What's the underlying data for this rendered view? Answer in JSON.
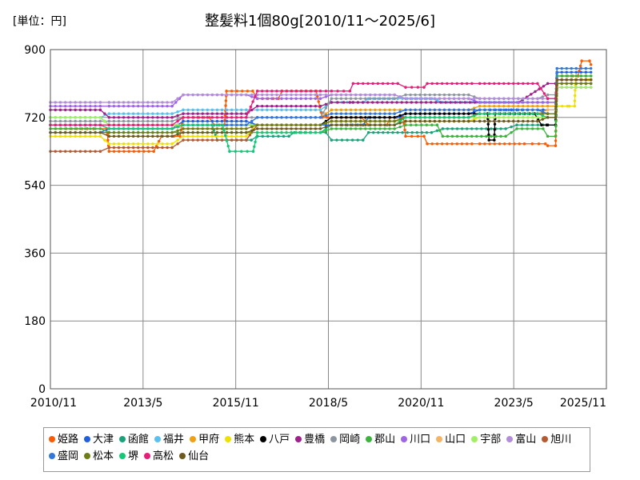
{
  "chart_data": {
    "type": "line",
    "unit_label": "[単位：円]",
    "title": "整髪料1個80g[2010/11～2025/6]",
    "xlabel": "",
    "ylabel": "",
    "ylim": [
      0,
      900
    ],
    "yticks": [
      0,
      180,
      360,
      540,
      720,
      900
    ],
    "xlim": [
      "2010/11",
      "2025/11"
    ],
    "xticks": [
      "2010/11",
      "2013/5",
      "2015/11",
      "2018/5",
      "2020/11",
      "2023/5",
      "2025/11"
    ],
    "grid": true,
    "legend_position": "bottom",
    "series": [
      {
        "name": "姫路",
        "color": "#ff5a00",
        "points": [
          [
            "2010/11",
            690
          ],
          [
            "2012/1",
            690
          ],
          [
            "2012/6",
            630
          ],
          [
            "2013/11",
            670
          ],
          [
            "2014/6",
            720
          ],
          [
            "2015/4",
            700
          ],
          [
            "2015/8",
            790
          ],
          [
            "2016/6",
            770
          ],
          [
            "2017/2",
            790
          ],
          [
            "2018/3",
            720
          ],
          [
            "2019/6",
            700
          ],
          [
            "2020/1",
            720
          ],
          [
            "2020/6",
            670
          ],
          [
            "2021/1",
            650
          ],
          [
            "2022/6",
            650
          ],
          [
            "2023/11",
            650
          ],
          [
            "2024/4",
            645
          ],
          [
            "2024/7",
            830
          ],
          [
            "2025/3",
            870
          ],
          [
            "2025/6",
            860
          ]
        ]
      },
      {
        "name": "大津",
        "color": "#1f5fe0",
        "points": [
          [
            "2010/11",
            680
          ],
          [
            "2012/6",
            690
          ],
          [
            "2014/6",
            710
          ],
          [
            "2016/6",
            700
          ],
          [
            "2018/6",
            700
          ],
          [
            "2019/6",
            720
          ],
          [
            "2020/6",
            730
          ],
          [
            "2022/6",
            740
          ],
          [
            "2023/6",
            740
          ],
          [
            "2024/4",
            740
          ],
          [
            "2024/7",
            840
          ],
          [
            "2025/6",
            840
          ]
        ]
      },
      {
        "name": "函館",
        "color": "#1aa37a",
        "points": [
          [
            "2010/11",
            720
          ],
          [
            "2012/6",
            700
          ],
          [
            "2014/6",
            700
          ],
          [
            "2015/5",
            660
          ],
          [
            "2016/6",
            670
          ],
          [
            "2017/6",
            680
          ],
          [
            "2018/6",
            660
          ],
          [
            "2019/6",
            680
          ],
          [
            "2021/6",
            690
          ],
          [
            "2023/6",
            700
          ],
          [
            "2024/4",
            700
          ],
          [
            "2024/7",
            830
          ],
          [
            "2025/6",
            830
          ]
        ]
      },
      {
        "name": "福井",
        "color": "#5ac0f0",
        "points": [
          [
            "2010/11",
            720
          ],
          [
            "2012/6",
            730
          ],
          [
            "2014/6",
            740
          ],
          [
            "2016/6",
            740
          ],
          [
            "2018/6",
            760
          ],
          [
            "2019/6",
            770
          ],
          [
            "2021/6",
            760
          ],
          [
            "2023/6",
            760
          ],
          [
            "2024/4",
            760
          ],
          [
            "2024/7",
            810
          ],
          [
            "2025/6",
            810
          ]
        ]
      },
      {
        "name": "甲府",
        "color": "#f0a010",
        "points": [
          [
            "2010/11",
            700
          ],
          [
            "2012/6",
            690
          ],
          [
            "2014/6",
            700
          ],
          [
            "2016/6",
            720
          ],
          [
            "2018/6",
            740
          ],
          [
            "2020/6",
            740
          ],
          [
            "2022/6",
            750
          ],
          [
            "2024/4",
            750
          ],
          [
            "2024/7",
            820
          ],
          [
            "2025/6",
            820
          ]
        ]
      },
      {
        "name": "熊本",
        "color": "#f0e000",
        "points": [
          [
            "2010/11",
            670
          ],
          [
            "2012/6",
            650
          ],
          [
            "2014/6",
            670
          ],
          [
            "2016/6",
            700
          ],
          [
            "2018/6",
            710
          ],
          [
            "2020/6",
            710
          ],
          [
            "2022/6",
            720
          ],
          [
            "2024/4",
            720
          ],
          [
            "2024/7",
            750
          ],
          [
            "2024/11",
            750
          ],
          [
            "2025/1",
            820
          ],
          [
            "2025/6",
            820
          ]
        ]
      },
      {
        "name": "八戸",
        "color": "#000000",
        "points": [
          [
            "2010/11",
            700
          ],
          [
            "2012/6",
            700
          ],
          [
            "2014/6",
            700
          ],
          [
            "2016/6",
            700
          ],
          [
            "2018/6",
            720
          ],
          [
            "2020/6",
            730
          ],
          [
            "2022/6",
            730
          ],
          [
            "2022/9",
            660
          ],
          [
            "2022/11",
            730
          ],
          [
            "2024/2",
            700
          ],
          [
            "2024/4",
            700
          ],
          [
            "2024/7",
            810
          ],
          [
            "2025/6",
            810
          ]
        ]
      },
      {
        "name": "豊橋",
        "color": "#a0208c",
        "points": [
          [
            "2010/11",
            740
          ],
          [
            "2012/6",
            720
          ],
          [
            "2014/6",
            730
          ],
          [
            "2016/6",
            750
          ],
          [
            "2018/6",
            760
          ],
          [
            "2019/1",
            760
          ],
          [
            "2024/4",
            810
          ],
          [
            "2024/7",
            810
          ],
          [
            "2025/6",
            810
          ]
        ]
      },
      {
        "name": "岡崎",
        "color": "#8c96a0",
        "points": [
          [
            "2010/11",
            710
          ],
          [
            "2012/6",
            710
          ],
          [
            "2014/6",
            720
          ],
          [
            "2016/6",
            720
          ],
          [
            "2018/6",
            770
          ],
          [
            "2020/6",
            780
          ],
          [
            "2022/6",
            770
          ],
          [
            "2024/4",
            780
          ],
          [
            "2024/7",
            810
          ],
          [
            "2025/6",
            810
          ]
        ]
      },
      {
        "name": "郡山",
        "color": "#3cb43c",
        "points": [
          [
            "2010/11",
            690
          ],
          [
            "2012/6",
            680
          ],
          [
            "2014/6",
            680
          ],
          [
            "2016/6",
            680
          ],
          [
            "2018/6",
            690
          ],
          [
            "2020/6",
            700
          ],
          [
            "2021/6",
            670
          ],
          [
            "2023/6",
            690
          ],
          [
            "2024/4",
            670
          ],
          [
            "2024/7",
            830
          ],
          [
            "2025/6",
            830
          ]
        ]
      },
      {
        "name": "川口",
        "color": "#a064e6",
        "points": [
          [
            "2010/11",
            750
          ],
          [
            "2012/6",
            750
          ],
          [
            "2014/6",
            780
          ],
          [
            "2016/6",
            770
          ],
          [
            "2018/6",
            780
          ],
          [
            "2020/6",
            770
          ],
          [
            "2022/6",
            760
          ],
          [
            "2024/4",
            760
          ],
          [
            "2024/7",
            800
          ],
          [
            "2025/6",
            800
          ]
        ]
      },
      {
        "name": "山口",
        "color": "#f5b464",
        "points": [
          [
            "2010/11",
            700
          ],
          [
            "2012/6",
            700
          ],
          [
            "2014/6",
            690
          ],
          [
            "2016/6",
            700
          ],
          [
            "2018/6",
            710
          ],
          [
            "2020/6",
            720
          ],
          [
            "2022/6",
            730
          ],
          [
            "2024/4",
            740
          ],
          [
            "2024/7",
            810
          ],
          [
            "2025/6",
            810
          ]
        ]
      },
      {
        "name": "宇部",
        "color": "#a0f064",
        "points": [
          [
            "2010/11",
            720
          ],
          [
            "2012/6",
            700
          ],
          [
            "2014/6",
            700
          ],
          [
            "2016/6",
            700
          ],
          [
            "2018/6",
            710
          ],
          [
            "2020/6",
            720
          ],
          [
            "2022/6",
            720
          ],
          [
            "2024/4",
            720
          ],
          [
            "2024/7",
            800
          ],
          [
            "2025/6",
            800
          ]
        ]
      },
      {
        "name": "富山",
        "color": "#b48cdc",
        "points": [
          [
            "2010/11",
            760
          ],
          [
            "2012/6",
            760
          ],
          [
            "2014/6",
            780
          ],
          [
            "2016/6",
            780
          ],
          [
            "2018/6",
            780
          ],
          [
            "2020/6",
            770
          ],
          [
            "2022/6",
            770
          ],
          [
            "2024/4",
            770
          ],
          [
            "2024/7",
            810
          ],
          [
            "2025/6",
            810
          ]
        ]
      },
      {
        "name": "旭川",
        "color": "#b45a32",
        "points": [
          [
            "2010/11",
            630
          ],
          [
            "2012/6",
            640
          ],
          [
            "2014/6",
            660
          ],
          [
            "2016/6",
            700
          ],
          [
            "2018/6",
            710
          ],
          [
            "2020/6",
            720
          ],
          [
            "2022/6",
            730
          ],
          [
            "2024/4",
            730
          ],
          [
            "2024/7",
            820
          ],
          [
            "2025/6",
            820
          ]
        ]
      },
      {
        "name": "盛岡",
        "color": "#3278dc",
        "points": [
          [
            "2010/11",
            700
          ],
          [
            "2012/6",
            690
          ],
          [
            "2014/6",
            700
          ],
          [
            "2016/6",
            720
          ],
          [
            "2018/6",
            730
          ],
          [
            "2020/6",
            740
          ],
          [
            "2022/6",
            740
          ],
          [
            "2024/4",
            730
          ],
          [
            "2024/7",
            850
          ],
          [
            "2025/6",
            850
          ]
        ]
      },
      {
        "name": "松本",
        "color": "#6e7d14",
        "points": [
          [
            "2010/11",
            680
          ],
          [
            "2012/6",
            680
          ],
          [
            "2014/6",
            690
          ],
          [
            "2016/6",
            700
          ],
          [
            "2018/6",
            710
          ],
          [
            "2020/6",
            720
          ],
          [
            "2022/6",
            730
          ],
          [
            "2024/4",
            730
          ],
          [
            "2024/7",
            810
          ],
          [
            "2025/6",
            810
          ]
        ]
      },
      {
        "name": "堺",
        "color": "#14c878",
        "points": [
          [
            "2010/11",
            700
          ],
          [
            "2012/6",
            690
          ],
          [
            "2014/6",
            700
          ],
          [
            "2015/9",
            630
          ],
          [
            "2016/6",
            680
          ],
          [
            "2018/6",
            700
          ],
          [
            "2020/6",
            720
          ],
          [
            "2022/6",
            730
          ],
          [
            "2024/4",
            720
          ],
          [
            "2024/7",
            820
          ],
          [
            "2025/6",
            820
          ]
        ]
      },
      {
        "name": "高松",
        "color": "#e61e78",
        "points": [
          [
            "2010/11",
            700
          ],
          [
            "2012/6",
            700
          ],
          [
            "2014/6",
            720
          ],
          [
            "2016/6",
            790
          ],
          [
            "2018/6",
            790
          ],
          [
            "2019/1",
            810
          ],
          [
            "2020/6",
            800
          ],
          [
            "2021/1",
            810
          ],
          [
            "2022/6",
            810
          ],
          [
            "2024/4",
            770
          ],
          [
            "2024/7",
            820
          ],
          [
            "2025/6",
            820
          ]
        ]
      },
      {
        "name": "仙台",
        "color": "#6e5a1e",
        "points": [
          [
            "2010/11",
            680
          ],
          [
            "2012/6",
            670
          ],
          [
            "2014/6",
            680
          ],
          [
            "2016/6",
            690
          ],
          [
            "2018/6",
            700
          ],
          [
            "2020/6",
            710
          ],
          [
            "2022/6",
            710
          ],
          [
            "2024/4",
            720
          ],
          [
            "2024/7",
            820
          ],
          [
            "2025/6",
            820
          ]
        ]
      }
    ]
  }
}
